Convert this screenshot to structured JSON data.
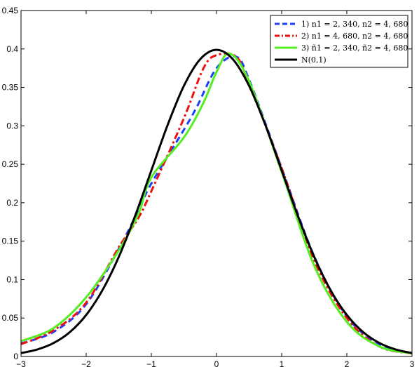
{
  "chart_data": {
    "type": "line",
    "title": "",
    "xlabel": "",
    "ylabel": "",
    "xlim": [
      -3,
      3
    ],
    "ylim": [
      0,
      0.45
    ],
    "grid": false,
    "legend_position": "top-right",
    "x_ticks": [
      {
        "value": -3,
        "label": "−3"
      },
      {
        "value": -2,
        "label": "−2"
      },
      {
        "value": -1,
        "label": "−1"
      },
      {
        "value": 0,
        "label": "0"
      },
      {
        "value": 1,
        "label": "1"
      },
      {
        "value": 2,
        "label": "2"
      },
      {
        "value": 3,
        "label": "3"
      }
    ],
    "y_ticks": [
      {
        "value": 0,
        "label": "0"
      },
      {
        "value": 0.05,
        "label": "0.05"
      },
      {
        "value": 0.1,
        "label": "0.1"
      },
      {
        "value": 0.15,
        "label": "0.15"
      },
      {
        "value": 0.2,
        "label": "0.2"
      },
      {
        "value": 0.25,
        "label": "0.25"
      },
      {
        "value": 0.3,
        "label": "0.3"
      },
      {
        "value": 0.35,
        "label": "0.35"
      },
      {
        "value": 0.4,
        "label": "0.4"
      },
      {
        "value": 0.45,
        "label": "0.45"
      }
    ],
    "series": [
      {
        "name": "1) n1 = 2, 340, n2 = 4, 680",
        "color": "#1f3fff",
        "style": "dashed",
        "x": [
          -3,
          -2.5,
          -2,
          -1.5,
          -1.2,
          -1,
          -0.5,
          -0.3,
          0,
          0.3,
          0.5,
          1,
          1.5,
          2,
          2.5,
          3
        ],
        "y": [
          0.017,
          0.032,
          0.068,
          0.14,
          0.19,
          0.225,
          0.295,
          0.325,
          0.375,
          0.39,
          0.36,
          0.245,
          0.13,
          0.052,
          0.016,
          0.004
        ]
      },
      {
        "name": "2) n1 = 4, 680, n2 = 4, 680",
        "color": "#ee1111",
        "style": "dashdot",
        "x": [
          -3,
          -2.5,
          -2,
          -1.5,
          -1.2,
          -1,
          -0.5,
          -0.2,
          0,
          0.3,
          0.5,
          1,
          1.5,
          2,
          2.5,
          3
        ],
        "y": [
          0.016,
          0.034,
          0.07,
          0.142,
          0.18,
          0.215,
          0.31,
          0.375,
          0.392,
          0.39,
          0.355,
          0.245,
          0.125,
          0.05,
          0.013,
          0.004
        ]
      },
      {
        "name": "3) ñ1 = 2, 340, ñ2 = 4, 680",
        "color": "#55ee22",
        "style": "solid",
        "x": [
          -3,
          -2.5,
          -2,
          -1.5,
          -1.2,
          -1,
          -0.5,
          -0.2,
          0,
          0.2,
          0.5,
          1,
          1.5,
          2,
          2.5,
          3
        ],
        "y": [
          0.02,
          0.037,
          0.077,
          0.138,
          0.185,
          0.233,
          0.285,
          0.33,
          0.37,
          0.394,
          0.358,
          0.24,
          0.118,
          0.045,
          0.013,
          0.004
        ]
      },
      {
        "name": "N(0,1)",
        "color": "#000000",
        "style": "solid",
        "x": [
          -3,
          -2.75,
          -2.5,
          -2.25,
          -2,
          -1.75,
          -1.5,
          -1.25,
          -1,
          -0.75,
          -0.5,
          -0.25,
          0,
          0.25,
          0.5,
          0.75,
          1,
          1.25,
          1.5,
          1.75,
          2,
          2.25,
          2.5,
          2.75,
          3
        ],
        "y": [
          0.0044,
          0.0091,
          0.0175,
          0.0317,
          0.054,
          0.0863,
          0.1295,
          0.1826,
          0.242,
          0.3011,
          0.3521,
          0.3867,
          0.3989,
          0.3867,
          0.3521,
          0.3011,
          0.242,
          0.1826,
          0.1295,
          0.0863,
          0.054,
          0.0317,
          0.0175,
          0.0091,
          0.0044
        ]
      }
    ]
  }
}
